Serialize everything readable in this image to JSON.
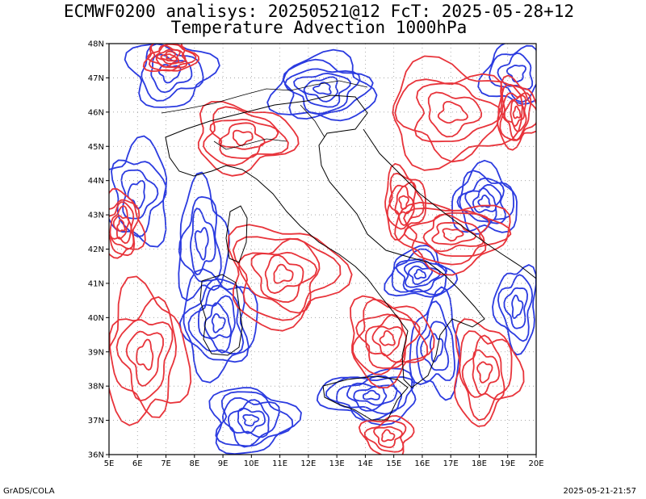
{
  "header": {
    "line1": "ECMWF0200 analisys: 20250521@12 FcT: 2025-05-28+12",
    "line2": "Temperature Advection 1000hPa"
  },
  "footer": {
    "left": "GrADS/COLA",
    "right": "2025-05-21-21:57"
  },
  "map": {
    "lon_range": [
      5,
      20
    ],
    "lat_range": [
      36,
      48
    ],
    "lon_ticks": [
      "5E",
      "6E",
      "7E",
      "8E",
      "9E",
      "10E",
      "11E",
      "12E",
      "13E",
      "14E",
      "15E",
      "16E",
      "17E",
      "18E",
      "19E",
      "20E"
    ],
    "lat_ticks": [
      "36N",
      "37N",
      "38N",
      "39N",
      "40N",
      "41N",
      "42N",
      "43N",
      "44N",
      "45N",
      "46N",
      "47N",
      "48N"
    ],
    "grid": "dotted",
    "colors": {
      "warm_advection": "#e8333a",
      "cold_advection": "#2b3be0",
      "coastline": "#000000",
      "grid": "#999999"
    }
  }
}
